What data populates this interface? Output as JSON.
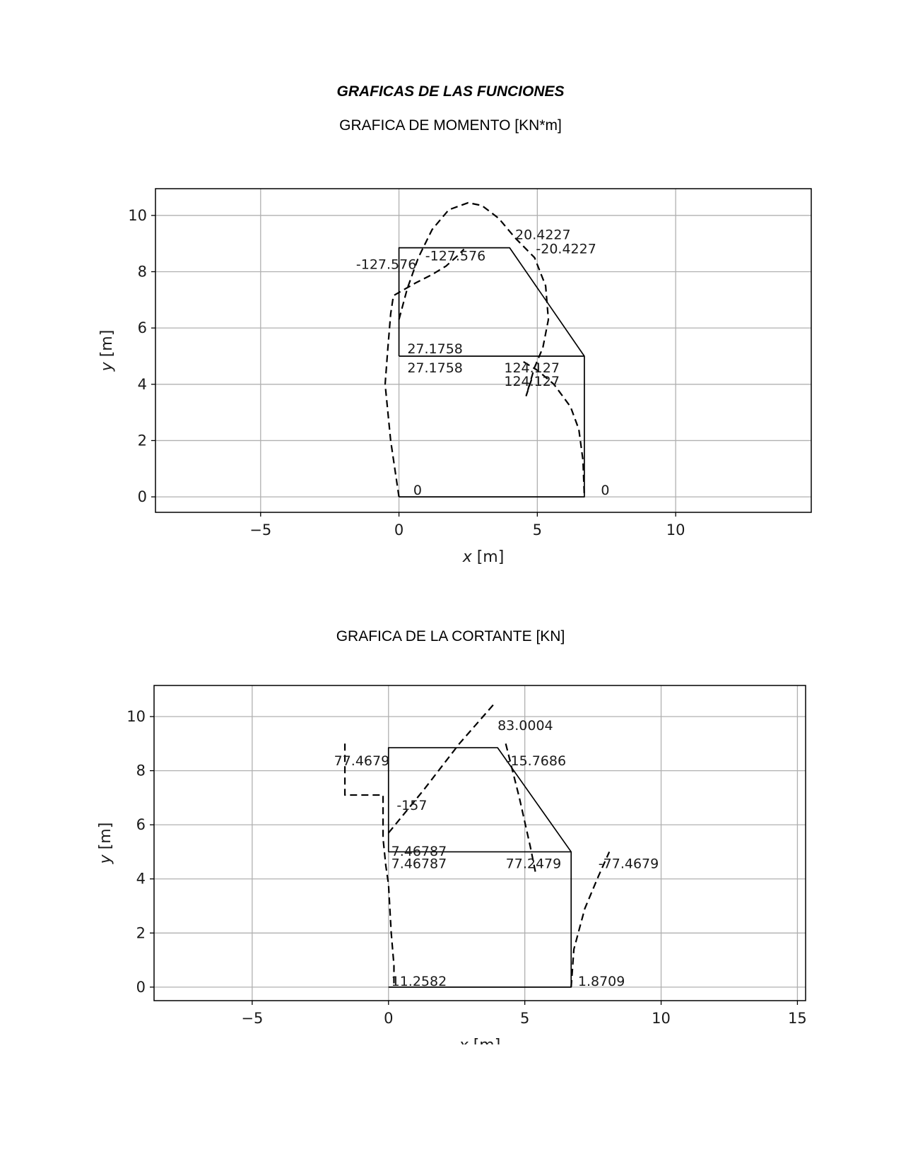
{
  "page": {
    "title": "GRAFICAS DE LAS FUNCIONES",
    "charts": [
      {
        "title": "GRAFICA DE MOMENTO [KN*m]"
      },
      {
        "title": "GRAFICA DE LA CORTANTE [KN]"
      }
    ]
  },
  "chart_data": [
    {
      "type": "line",
      "title": "GRAFICA DE MOMENTO [KN*m]",
      "xlabel_var": "x",
      "xlabel_unit": " [m]",
      "ylabel_var": "y",
      "ylabel_unit": " [m]",
      "xlim": [
        -8.8,
        14.9
      ],
      "ylim": [
        -0.55,
        10.95
      ],
      "xticks": [
        -5,
        0,
        5,
        10
      ],
      "xtick_labels": [
        "−5",
        "0",
        "5",
        "10"
      ],
      "yticks": [
        0,
        2,
        4,
        6,
        8,
        10
      ],
      "grid": true,
      "series": [
        {
          "style": "solid",
          "x": [
            0,
            0,
            4,
            6.7,
            6.7,
            0
          ],
          "y": [
            5,
            8.85,
            8.85,
            5,
            0,
            0
          ]
        },
        {
          "style": "solid",
          "x": [
            0,
            6.7
          ],
          "y": [
            5,
            5
          ]
        },
        {
          "style": "dashed",
          "x": [
            0,
            -0.3,
            -0.5,
            -0.4,
            -0.3,
            -0.2,
            0.6,
            1.2,
            1.7,
            2.1,
            2.35
          ],
          "y": [
            0,
            2,
            4,
            5.3,
            6.5,
            7.15,
            7.6,
            7.9,
            8.2,
            8.55,
            8.8
          ]
        },
        {
          "style": "dashed",
          "x": [
            0,
            0.3,
            0.7,
            1.2,
            1.8,
            2.5,
            3.0,
            3.6,
            4.2,
            4.9,
            5.3,
            5.4,
            5.2,
            4.9,
            4.6,
            4.8
          ],
          "y": [
            6.3,
            7.4,
            8.5,
            9.5,
            10.2,
            10.45,
            10.35,
            9.9,
            9.2,
            8.5,
            7.5,
            6.3,
            5.3,
            4.6,
            3.6,
            4.2
          ]
        },
        {
          "style": "dashed",
          "x": [
            4.5,
            5.0,
            5.6,
            6.2,
            6.5,
            6.65,
            6.7
          ],
          "y": [
            4.8,
            4.5,
            4.0,
            3.2,
            2.4,
            1.3,
            0
          ]
        }
      ],
      "annotations": [
        {
          "text": "20.4227",
          "x": 4.2,
          "y": 9.15
        },
        {
          "text": "-20.4227",
          "x": 4.95,
          "y": 8.65
        },
        {
          "text": "-127.576",
          "x": 0.95,
          "y": 8.4
        },
        {
          "text": "-127.576",
          "x": -1.55,
          "y": 8.1
        },
        {
          "text": "27.1758",
          "x": 0.3,
          "y": 5.1
        },
        {
          "text": "27.1758",
          "x": 0.3,
          "y": 4.42
        },
        {
          "text": "124.127",
          "x": 3.8,
          "y": 4.42
        },
        {
          "text": "124.127",
          "x": 3.8,
          "y": 3.95
        },
        {
          "text": "0",
          "x": 0.52,
          "y": 0.08
        },
        {
          "text": "0",
          "x": 7.3,
          "y": 0.08
        }
      ]
    },
    {
      "type": "line",
      "title": "GRAFICA DE LA CORTANTE [KN]",
      "xlabel_var": "x",
      "xlabel_unit": " [m]",
      "ylabel_var": "y",
      "ylabel_unit": " [m]",
      "xlim": [
        -8.6,
        15.3
      ],
      "ylim": [
        -0.5,
        11.15
      ],
      "xticks": [
        -5,
        0,
        5,
        10,
        15
      ],
      "xtick_labels": [
        "−5",
        "0",
        "5",
        "10",
        "15"
      ],
      "yticks": [
        0,
        2,
        4,
        6,
        8,
        10
      ],
      "grid": true,
      "series": [
        {
          "style": "solid",
          "x": [
            0,
            0,
            4,
            6.7,
            6.7,
            0
          ],
          "y": [
            5,
            8.85,
            8.85,
            5,
            0,
            0
          ]
        },
        {
          "style": "solid",
          "x": [
            0,
            6.7
          ],
          "y": [
            5,
            5
          ]
        },
        {
          "style": "dashed",
          "x": [
            -1.6,
            -1.6,
            -0.2,
            -0.2,
            -0.1,
            0,
            0.1,
            0.2,
            0.2
          ],
          "y": [
            9.0,
            7.1,
            7.1,
            5.5,
            4.5,
            3.8,
            2.0,
            0.8,
            0
          ]
        },
        {
          "style": "dashed",
          "x": [
            0,
            1.3,
            2.6,
            3.9
          ],
          "y": [
            5.7,
            7.3,
            9.0,
            10.5
          ]
        },
        {
          "style": "dashed",
          "x": [
            4.3,
            4.8,
            5.2,
            5.4
          ],
          "y": [
            9.0,
            7.0,
            5.2,
            4.2
          ]
        },
        {
          "style": "dashed",
          "x": [
            6.7,
            6.8,
            7.2,
            7.7,
            8.1
          ],
          "y": [
            0,
            1.4,
            2.9,
            4.1,
            5.0
          ]
        }
      ],
      "annotations": [
        {
          "text": "83.0004",
          "x": 4.0,
          "y": 9.5
        },
        {
          "text": "77.4679",
          "x": -2.0,
          "y": 8.2
        },
        {
          "text": "-15.7686",
          "x": 4.3,
          "y": 8.2
        },
        {
          "text": "-157",
          "x": 0.3,
          "y": 6.55
        },
        {
          "text": "7.46787",
          "x": 0.1,
          "y": 4.85
        },
        {
          "text": "7.46787",
          "x": 0.1,
          "y": 4.4
        },
        {
          "text": "77.2479",
          "x": 4.3,
          "y": 4.4
        },
        {
          "text": "-77.4679",
          "x": 7.7,
          "y": 4.4
        },
        {
          "text": "11.2582",
          "x": 0.1,
          "y": 0.05
        },
        {
          "text": "1.8709",
          "x": 6.95,
          "y": 0.05
        }
      ]
    }
  ]
}
